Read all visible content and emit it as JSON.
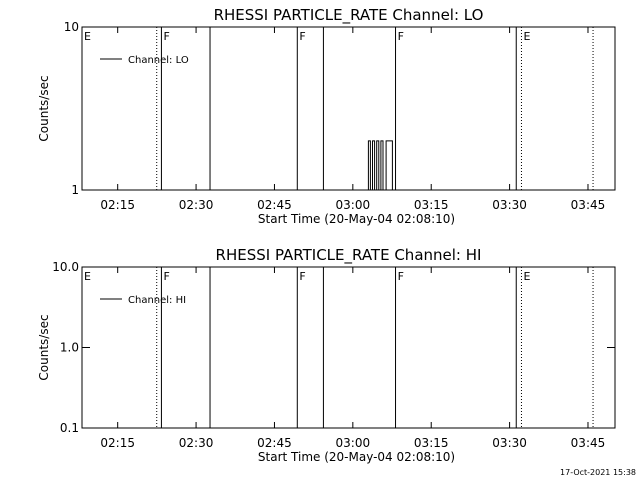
{
  "chart_data": [
    {
      "type": "line",
      "title": "RHESSI PARTICLE_RATE Channel: LO",
      "xlabel": "Start Time (20-May-04 02:08:10)",
      "ylabel": "Counts/sec",
      "x_unit": "minutes after start time",
      "xlim": [
        0,
        102
      ],
      "ylim": [
        1,
        10
      ],
      "yscale": "log",
      "x_ticks": [
        {
          "x": 6.83,
          "label": "02:15"
        },
        {
          "x": 21.83,
          "label": "02:30"
        },
        {
          "x": 36.83,
          "label": "02:45"
        },
        {
          "x": 51.83,
          "label": "03:00"
        },
        {
          "x": 66.83,
          "label": "03:15"
        },
        {
          "x": 81.83,
          "label": "03:30"
        },
        {
          "x": 96.83,
          "label": "03:45"
        }
      ],
      "y_ticks": [
        {
          "y": 1,
          "label": "1"
        },
        {
          "y": 10,
          "label": "10"
        }
      ],
      "legend": {
        "position": "top-left",
        "entries": [
          "Channel: LO"
        ]
      },
      "solid_lines": [
        15.2,
        24.5,
        41.2,
        46.2,
        60.0,
        83.1
      ],
      "dotted_lines": [
        14.3,
        84.1,
        97.8
      ],
      "flags": [
        {
          "x": 0.2,
          "label": "E"
        },
        {
          "x": 15.4,
          "label": "F"
        },
        {
          "x": 41.4,
          "label": "F"
        },
        {
          "x": 60.2,
          "label": "F"
        },
        {
          "x": 84.3,
          "label": "E"
        }
      ],
      "series": [
        {
          "name": "Channel: LO",
          "x": [
            54.8,
            54.8,
            55.2,
            55.2,
            55.6,
            55.6,
            56.0,
            56.0,
            56.4,
            56.4,
            56.8,
            56.8,
            57.2,
            57.2,
            57.6,
            57.6,
            58.2,
            58.2,
            59.4,
            59.4,
            60.2
          ],
          "y": [
            1,
            2,
            2,
            1,
            1,
            2,
            2,
            1,
            1,
            2,
            2,
            1,
            1,
            2,
            2,
            1,
            1,
            2,
            2,
            1,
            1
          ]
        }
      ]
    },
    {
      "type": "line",
      "title": "RHESSI PARTICLE_RATE Channel: HI",
      "xlabel": "Start Time (20-May-04 02:08:10)",
      "ylabel": "Counts/sec",
      "x_unit": "minutes after start time",
      "xlim": [
        0,
        102
      ],
      "ylim": [
        0.1,
        10
      ],
      "yscale": "log",
      "x_ticks": [
        {
          "x": 6.83,
          "label": "02:15"
        },
        {
          "x": 21.83,
          "label": "02:30"
        },
        {
          "x": 36.83,
          "label": "02:45"
        },
        {
          "x": 51.83,
          "label": "03:00"
        },
        {
          "x": 66.83,
          "label": "03:15"
        },
        {
          "x": 81.83,
          "label": "03:30"
        },
        {
          "x": 96.83,
          "label": "03:45"
        }
      ],
      "y_ticks": [
        {
          "y": 0.1,
          "label": "0.1"
        },
        {
          "y": 1,
          "label": "1.0"
        },
        {
          "y": 10,
          "label": "10.0"
        }
      ],
      "legend": {
        "position": "top-left",
        "entries": [
          "Channel: HI"
        ]
      },
      "solid_lines": [
        15.2,
        24.5,
        41.2,
        46.2,
        60.0,
        83.1
      ],
      "dotted_lines": [
        14.3,
        84.1,
        97.8
      ],
      "flags": [
        {
          "x": 0.2,
          "label": "E"
        },
        {
          "x": 15.4,
          "label": "F"
        },
        {
          "x": 41.4,
          "label": "F"
        },
        {
          "x": 60.2,
          "label": "F"
        },
        {
          "x": 84.3,
          "label": "E"
        }
      ],
      "series": [
        {
          "name": "Channel: HI",
          "x": [],
          "y": []
        }
      ]
    }
  ],
  "footer": {
    "timestamp": "17-Oct-2021 15:38"
  }
}
